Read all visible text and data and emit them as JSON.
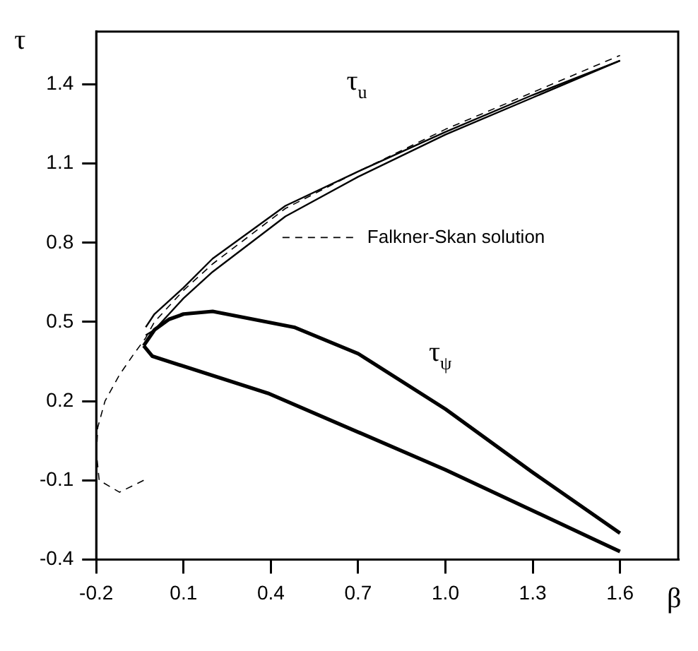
{
  "chart_data": {
    "type": "line",
    "xlabel": "β",
    "ylabel": "τ",
    "xlim": [
      -0.2,
      1.8
    ],
    "xticks": [
      -0.2,
      0.1,
      0.4,
      0.7,
      {
        "value": 1,
        "label": "1.0"
      },
      1.3,
      1.6
    ],
    "ylim": [
      -0.4,
      1.6
    ],
    "yticks": [
      -0.4,
      -0.1,
      0.2,
      0.5,
      0.8,
      1.1,
      1.4
    ],
    "grid": false,
    "legend": "right",
    "marker": "none",
    "series": [
      {
        "name": "τ$_{u}$",
        "color": "#000000",
        "line_style": "solid",
        "x": [
          -0.03,
          0.0,
          0.1,
          0.2,
          0.45,
          0.7,
          1.0,
          1.3,
          1.6
        ],
        "values": [
          0.48,
          0.53,
          0.63,
          0.74,
          0.94,
          1.07,
          1.22,
          1.36,
          1.49
        ]
      },
      {
        "color": "#000000",
        "line_style": "solid",
        "x": [
          -0.03,
          0.0,
          0.1,
          0.2,
          0.45,
          0.7,
          1.0,
          1.3,
          1.6
        ],
        "values": [
          0.45,
          0.47,
          0.59,
          0.69,
          0.9,
          1.05,
          1.21,
          1.35,
          1.49
        ]
      },
      {
        "name": "τ$_{ψ}$",
        "color": "#000000",
        "line_style": "solid",
        "x": [
          -0.037,
          0.0,
          0.05,
          0.1,
          0.2,
          0.48,
          0.7,
          1.0,
          1.3,
          1.6
        ],
        "values": [
          0.41,
          0.47,
          0.51,
          0.53,
          0.54,
          0.48,
          0.38,
          0.17,
          -0.07,
          -0.3
        ]
      },
      {
        "color": "#000000",
        "line_style": "solid",
        "x": [
          -0.037,
          -0.007,
          0.39,
          1.0,
          1.6
        ],
        "values": [
          0.41,
          0.37,
          0.23,
          -0.06,
          -0.37
        ]
      },
      {
        "name": "Falkner-Skan solution",
        "color": "#000000",
        "line_style": "dashed",
        "x": [
          -0.037,
          -0.12,
          -0.19,
          -0.199,
          -0.195,
          -0.17,
          -0.12,
          -0.07,
          -0.03,
          0.0,
          0.1,
          0.2,
          0.45,
          0.7,
          1.0,
          1.3,
          1.6
        ],
        "values": [
          -0.1,
          -0.145,
          -0.1,
          0.0,
          0.1,
          0.2,
          0.3,
          0.38,
          0.44,
          0.5,
          0.62,
          0.72,
          0.93,
          1.07,
          1.23,
          1.37,
          1.51
        ]
      }
    ]
  }
}
